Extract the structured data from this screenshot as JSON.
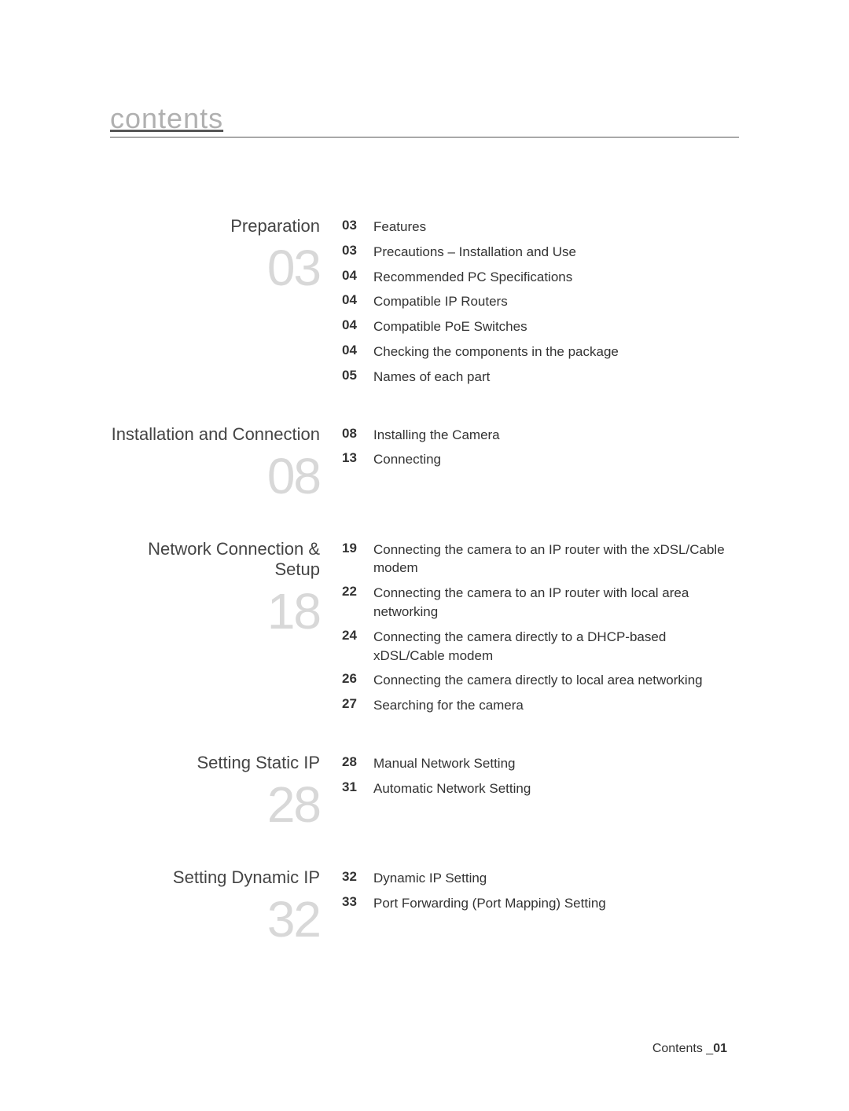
{
  "page_title": "contents",
  "sections": [
    {
      "title": "Preparation",
      "big_num": "03",
      "entries": [
        {
          "page": "03",
          "label": "Features"
        },
        {
          "page": "03",
          "label": "Precautions – Installation and Use"
        },
        {
          "page": "04",
          "label": "Recommended PC Specifications"
        },
        {
          "page": "04",
          "label": "Compatible IP Routers"
        },
        {
          "page": "04",
          "label": "Compatible PoE Switches"
        },
        {
          "page": "04",
          "label": "Checking the components in the package"
        },
        {
          "page": "05",
          "label": "Names of each part"
        }
      ]
    },
    {
      "title": "Installation and Connection",
      "big_num": "08",
      "entries": [
        {
          "page": "08",
          "label": "Installing the Camera"
        },
        {
          "page": "13",
          "label": "Connecting"
        }
      ]
    },
    {
      "title": "Network Connection & Setup",
      "big_num": "18",
      "entries": [
        {
          "page": "19",
          "label": "Connecting the camera to an IP router with the xDSL/Cable modem"
        },
        {
          "page": "22",
          "label": "Connecting the camera to an IP router with local area networking"
        },
        {
          "page": "24",
          "label": "Connecting the camera directly to a DHCP-based xDSL/Cable modem"
        },
        {
          "page": "26",
          "label": "Connecting the camera directly to local area networking"
        },
        {
          "page": "27",
          "label": "Searching for the camera"
        }
      ]
    },
    {
      "title": "Setting Static IP",
      "big_num": "28",
      "entries": [
        {
          "page": "28",
          "label": "Manual Network Setting"
        },
        {
          "page": "31",
          "label": "Automatic Network Setting"
        }
      ]
    },
    {
      "title": "Setting Dynamic IP",
      "big_num": "32",
      "entries": [
        {
          "page": "32",
          "label": "Dynamic IP Setting"
        },
        {
          "page": "33",
          "label": "Port Forwarding (Port Mapping) Setting"
        }
      ]
    }
  ],
  "footer_label": "Contents _",
  "footer_page": "01"
}
